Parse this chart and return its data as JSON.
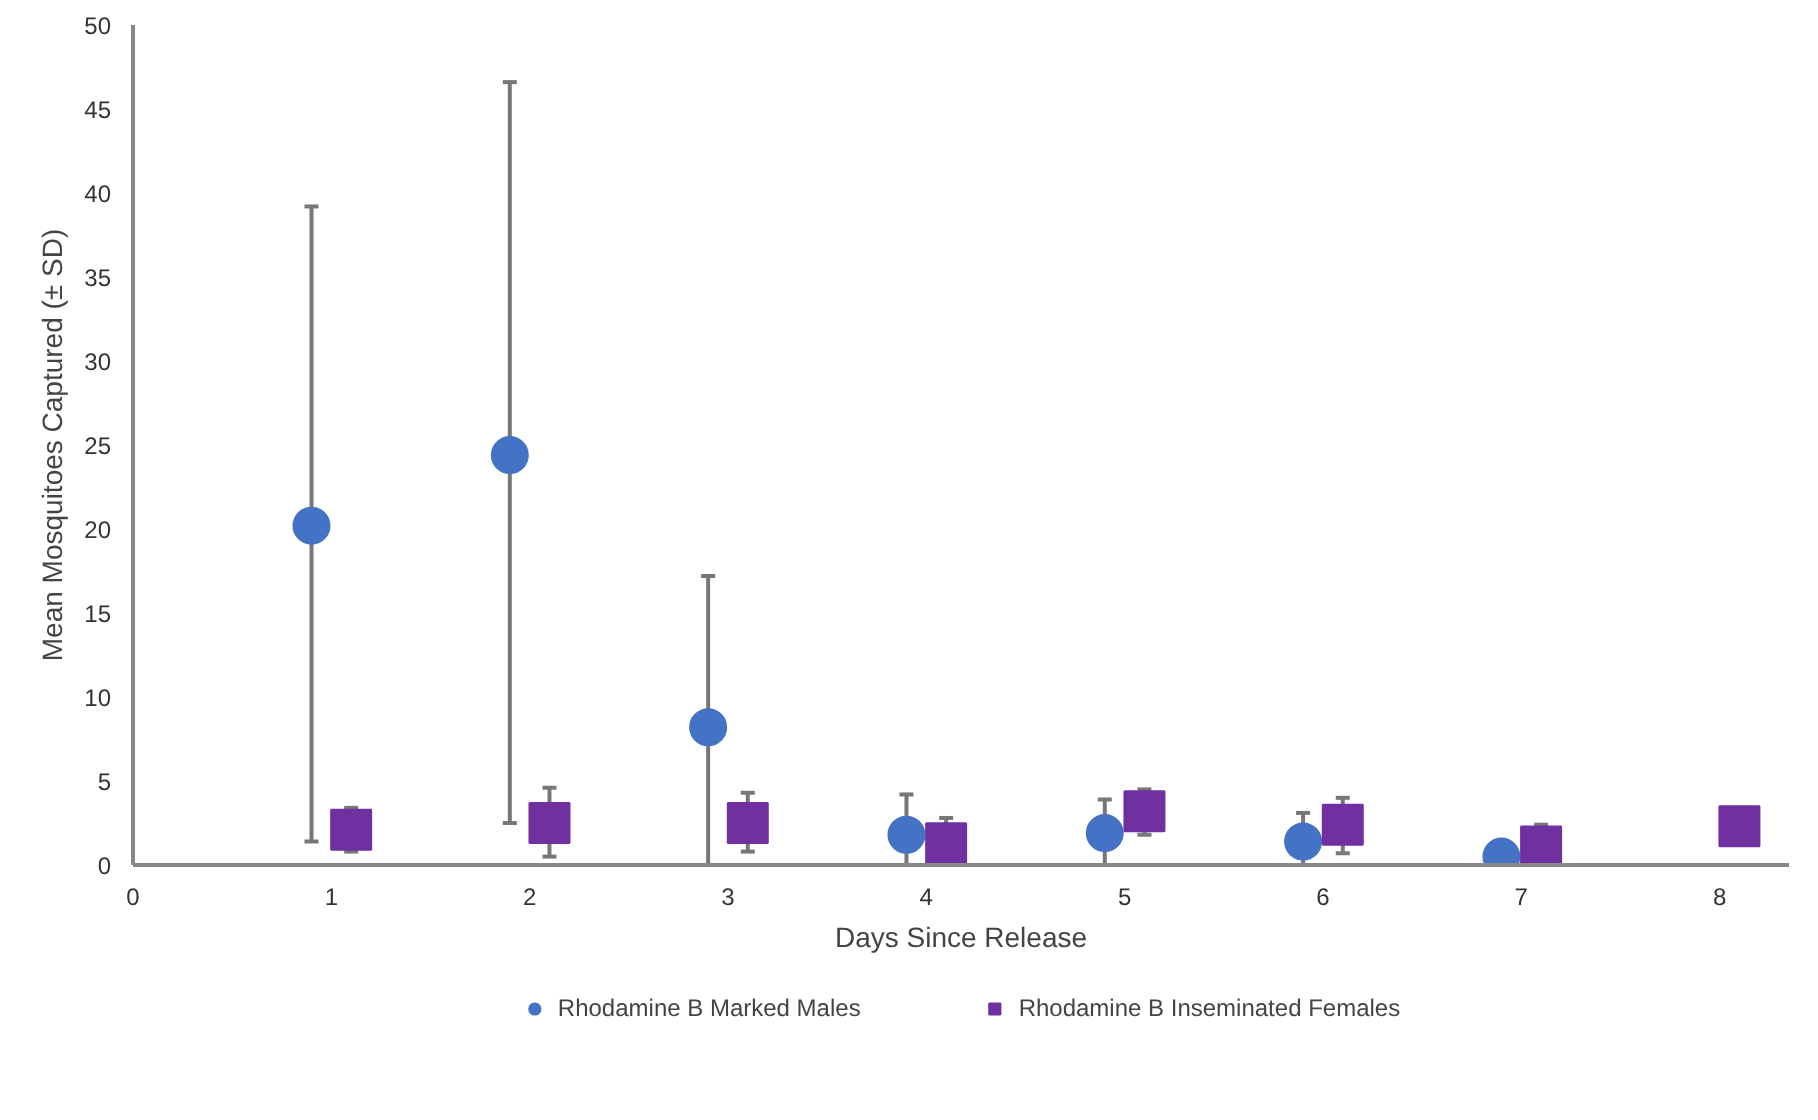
{
  "chart_data": {
    "type": "scatter",
    "xlabel": "Days Since Release",
    "ylabel": "Mean Mosquitoes Captured (± SD)",
    "xlim": [
      0,
      8.35
    ],
    "xticks": [
      0,
      1,
      2,
      3,
      4,
      5,
      6,
      7,
      8
    ],
    "ylim": [
      0,
      50
    ],
    "yticks": [
      0,
      5,
      10,
      15,
      20,
      25,
      30,
      35,
      40,
      45,
      50
    ],
    "grid": false,
    "legend": "bottom",
    "series": [
      {
        "name": "Rhodamine B Marked Males",
        "color": "#4472c4",
        "marker": "circle",
        "x": [
          0.9,
          1.9,
          2.9,
          3.9,
          4.9,
          5.9,
          6.9
        ],
        "values": [
          20.2,
          24.4,
          8.2,
          1.8,
          1.9,
          1.4,
          0.5
        ],
        "errors": [
          [
            1.4,
            39.2
          ],
          [
            2.5,
            46.6
          ],
          [
            0,
            17.2
          ],
          [
            0,
            4.2
          ],
          [
            0,
            3.9
          ],
          [
            0,
            3.1
          ],
          null
        ]
      },
      {
        "name": "Rhodamine B Inseminated Females",
        "color": "#7030a0",
        "marker": "square",
        "x": [
          1.1,
          2.1,
          3.1,
          4.1,
          5.1,
          6.1,
          7.1,
          8.1
        ],
        "values": [
          2.1,
          2.5,
          2.5,
          1.3,
          3.2,
          2.4,
          1.1,
          2.3
        ],
        "errors": [
          [
            0.8,
            3.4
          ],
          [
            0.5,
            4.6
          ],
          [
            0.8,
            4.3
          ],
          [
            0,
            2.8
          ],
          [
            1.8,
            4.5
          ],
          [
            0.7,
            4.0
          ],
          [
            0,
            2.4
          ],
          null
        ]
      }
    ]
  }
}
